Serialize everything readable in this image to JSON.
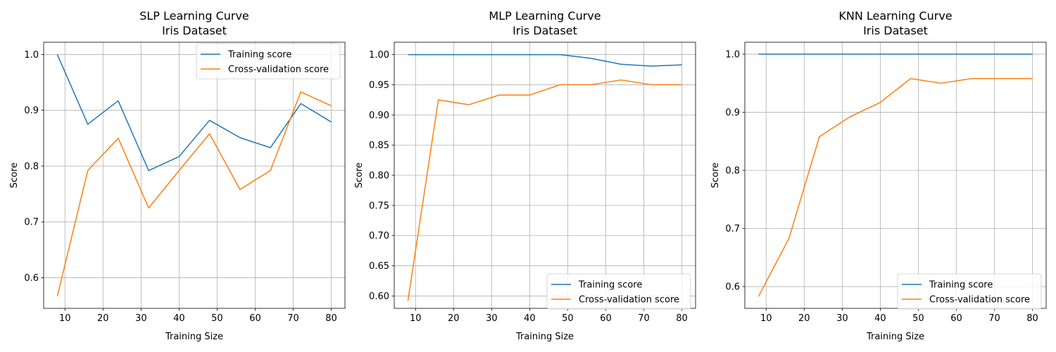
{
  "chart_data": [
    {
      "type": "line",
      "title": "SLP Learning Curve",
      "subtitle": "Iris Dataset",
      "xlabel": "Training Size",
      "ylabel": "Score",
      "xlim": [
        4.4,
        83.6
      ],
      "ylim": [
        0.545,
        1.022
      ],
      "xticks": [
        10,
        20,
        30,
        40,
        50,
        60,
        70,
        80
      ],
      "yticks": [
        0.6,
        0.7,
        0.8,
        0.9,
        1.0
      ],
      "ytick_labels": [
        "0.6",
        "0.7",
        "0.8",
        "0.9",
        "1.0"
      ],
      "grid": true,
      "legend_position": "top-right",
      "x": [
        8,
        16,
        24,
        32,
        40,
        48,
        56,
        64,
        72,
        80
      ],
      "series": [
        {
          "name": "Training score",
          "color": "#1f77b4",
          "values": [
            1.0,
            0.875,
            0.917,
            0.792,
            0.817,
            0.882,
            0.851,
            0.833,
            0.912,
            0.879
          ]
        },
        {
          "name": "Cross-validation score",
          "color": "#ff7f0e",
          "values": [
            0.567,
            0.792,
            0.85,
            0.725,
            0.792,
            0.858,
            0.758,
            0.792,
            0.933,
            0.908
          ]
        }
      ]
    },
    {
      "type": "line",
      "title": "MLP Learning Curve",
      "subtitle": "Iris Dataset",
      "xlabel": "Training Size",
      "ylabel": "Score",
      "xlim": [
        4.4,
        83.6
      ],
      "ylim": [
        0.5795,
        1.0205
      ],
      "xticks": [
        10,
        20,
        30,
        40,
        50,
        60,
        70,
        80
      ],
      "yticks": [
        0.6,
        0.65,
        0.7,
        0.75,
        0.8,
        0.85,
        0.9,
        0.95,
        1.0
      ],
      "ytick_labels": [
        "0.60",
        "0.65",
        "0.70",
        "0.75",
        "0.80",
        "0.85",
        "0.90",
        "0.95",
        "1.00"
      ],
      "grid": true,
      "legend_position": "bottom-right",
      "x": [
        8,
        16,
        24,
        32,
        40,
        48,
        56,
        64,
        72,
        80
      ],
      "series": [
        {
          "name": "Training score",
          "color": "#1f77b4",
          "values": [
            1.0,
            1.0,
            1.0,
            1.0,
            1.0,
            1.0,
            0.994,
            0.984,
            0.981,
            0.983
          ]
        },
        {
          "name": "Cross-validation score",
          "color": "#ff7f0e",
          "values": [
            0.592,
            0.925,
            0.917,
            0.933,
            0.933,
            0.95,
            0.95,
            0.958,
            0.95,
            0.95
          ]
        }
      ]
    },
    {
      "type": "line",
      "title": "KNN Learning Curve",
      "subtitle": "Iris Dataset",
      "xlabel": "Training Size",
      "ylabel": "Score",
      "xlim": [
        4.4,
        83.6
      ],
      "ylim": [
        0.5625,
        1.0205
      ],
      "xticks": [
        10,
        20,
        30,
        40,
        50,
        60,
        70,
        80
      ],
      "yticks": [
        0.6,
        0.7,
        0.8,
        0.9,
        1.0
      ],
      "ytick_labels": [
        "0.6",
        "0.7",
        "0.8",
        "0.9",
        "1.0"
      ],
      "grid": true,
      "legend_position": "bottom-right",
      "x": [
        8,
        16,
        24,
        32,
        40,
        48,
        56,
        64,
        72,
        80
      ],
      "series": [
        {
          "name": "Training score",
          "color": "#1f77b4",
          "values": [
            1.0,
            1.0,
            1.0,
            1.0,
            1.0,
            1.0,
            1.0,
            1.0,
            1.0,
            1.0
          ]
        },
        {
          "name": "Cross-validation score",
          "color": "#ff7f0e",
          "values": [
            0.583,
            0.683,
            0.858,
            0.892,
            0.917,
            0.958,
            0.95,
            0.958,
            0.958,
            0.958
          ]
        }
      ]
    }
  ]
}
